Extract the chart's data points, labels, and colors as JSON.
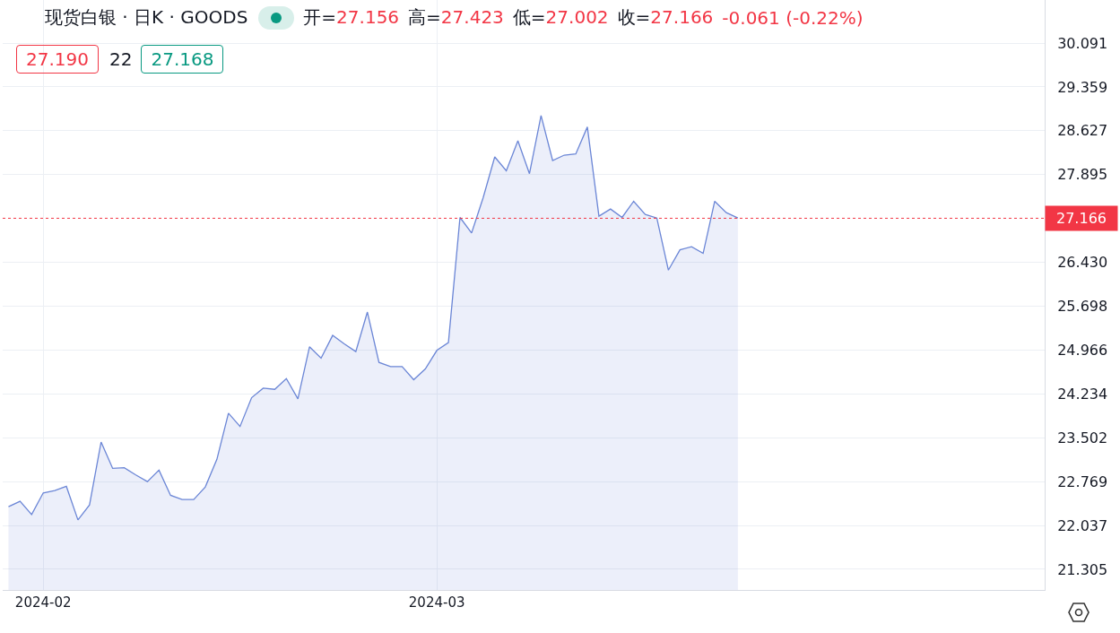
{
  "chart_data": {
    "type": "area",
    "title": "现货白银 · 日K · GOODS",
    "annotations": [
      "开=27.156",
      "高=27.423",
      "低=27.002",
      "收=27.166",
      "-0.061 (-0.22%)",
      "27.190",
      "22",
      "27.168"
    ],
    "categories": [
      null,
      null,
      null,
      "2024-02",
      null,
      null,
      null,
      null,
      null,
      null,
      null,
      null,
      null,
      null,
      null,
      null,
      null,
      null,
      null,
      null,
      null,
      null,
      null,
      null,
      null,
      null,
      null,
      null,
      null,
      null,
      null,
      null,
      null,
      null,
      null,
      null,
      null,
      "2024-03",
      null,
      null,
      null,
      null,
      null,
      null,
      null,
      null,
      null,
      null,
      null,
      null,
      null,
      null,
      null,
      null,
      null,
      null,
      null,
      null,
      null,
      null,
      null,
      null,
      null,
      null,
      null,
      null,
      null,
      null,
      null,
      null,
      null,
      null,
      null,
      null,
      null,
      null,
      null,
      null,
      null,
      null,
      null,
      null,
      null,
      null,
      null,
      null,
      null,
      null,
      null,
      null
    ],
    "values": [
      22.35,
      22.44,
      22.22,
      22.58,
      22.62,
      22.69,
      22.13,
      22.38,
      23.43,
      22.99,
      23.0,
      22.88,
      22.77,
      22.96,
      22.54,
      22.47,
      22.47,
      22.68,
      23.14,
      23.91,
      23.69,
      24.17,
      24.33,
      24.31,
      24.49,
      24.15,
      25.02,
      24.83,
      25.21,
      25.07,
      24.94,
      25.6,
      24.76,
      24.69,
      24.69,
      24.47,
      24.65,
      24.96,
      25.09,
      27.18,
      26.92,
      27.51,
      28.19,
      27.96,
      28.46,
      27.91,
      28.88,
      28.13,
      28.22,
      28.24,
      28.69,
      27.2,
      27.32,
      27.18,
      27.45,
      27.23,
      27.17,
      26.3,
      26.64,
      26.69,
      26.58,
      27.45,
      27.26,
      27.17,
      null,
      null,
      null,
      null,
      null,
      null,
      null,
      null,
      null,
      null,
      null,
      null,
      null,
      null,
      null,
      null,
      null,
      null,
      null,
      null,
      null,
      null,
      null,
      null,
      null,
      null
    ],
    "color": "#6b86d6",
    "ylim": [
      20.96,
      30.81
    ],
    "yticks": [
      21.305,
      22.037,
      22.769,
      23.502,
      24.234,
      24.966,
      25.698,
      {
        "value": 26.43,
        "label": "26.430"
      },
      27.895,
      28.627,
      29.359,
      30.091
    ],
    "grid": true,
    "ref_lines": [
      {
        "axis": "y",
        "value": 27.166,
        "label": "27.166",
        "color": "#f23645",
        "line_style": "dotted"
      }
    ]
  }
}
